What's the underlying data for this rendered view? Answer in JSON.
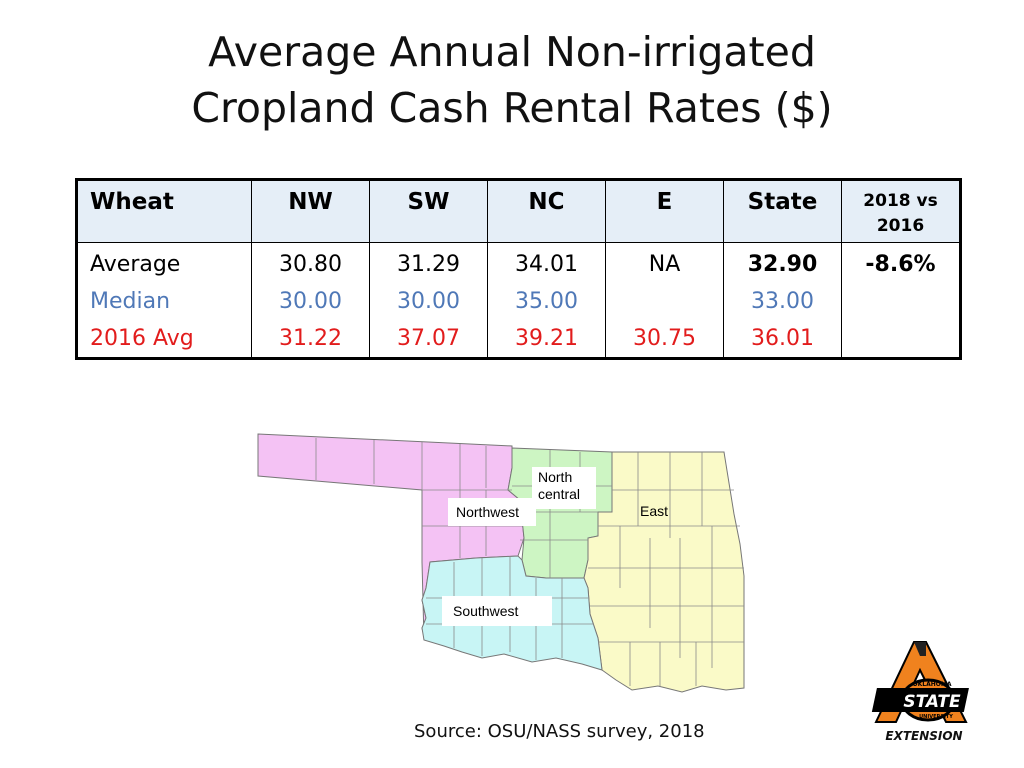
{
  "slide": {
    "title_line1": "Average Annual Non-irrigated",
    "title_line2": "Cropland Cash Rental Rates ($)",
    "source": "Source:  OSU/NASS survey, 2018"
  },
  "table": {
    "headers": {
      "crop": "Wheat",
      "nw": "NW",
      "sw": "SW",
      "nc": "NC",
      "e": "E",
      "state": "State",
      "change_line1": "2018 vs",
      "change_line2": "2016"
    },
    "rows": {
      "average": {
        "label": "Average",
        "nw": "30.80",
        "sw": "31.29",
        "nc": "34.01",
        "e": "NA",
        "state": "32.90",
        "change": "-8.6%"
      },
      "median": {
        "label": "Median",
        "nw": "30.00",
        "sw": "30.00",
        "nc": "35.00",
        "e": "",
        "state": "33.00"
      },
      "avg2016": {
        "label": "2016 Avg",
        "nw": "31.22",
        "sw": "37.07",
        "nc": "39.21",
        "e": "30.75",
        "state": "36.01"
      }
    },
    "colors": {
      "average": "#000000",
      "median": "#4f78b7",
      "avg2016": "#e21c1c",
      "header_bg": "#e5eef7"
    }
  },
  "map": {
    "labels": {
      "north_central_line1": "North",
      "north_central_line2": "central",
      "northwest": "Northwest",
      "east": "East",
      "southwest": "Southwest"
    },
    "region_colors": {
      "northwest": "#f4c2f4",
      "north_central": "#cdf5c3",
      "east": "#fafac8",
      "southwest": "#c8f5f5"
    }
  },
  "logo": {
    "text_top": "OKLAHOMA",
    "text_main": "STATE",
    "text_sub": "UNIVERSITY",
    "text_bottom": "EXTENSION"
  }
}
